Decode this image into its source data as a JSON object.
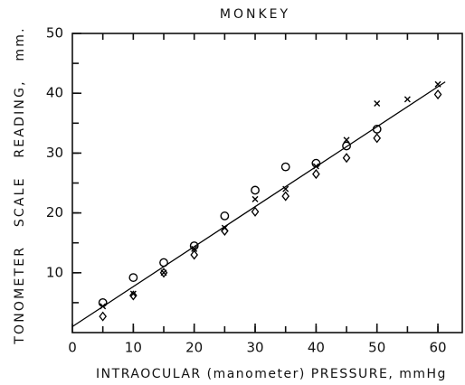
{
  "chart_data": {
    "type": "scatter",
    "title": "MONKEY",
    "x_label": "INTRAOCULAR (manometer) PRESSURE, mmHg",
    "y_label": "TONOMETER SCALE READING, mm.",
    "xlim": [
      0,
      64
    ],
    "ylim": [
      0,
      50
    ],
    "xticks": [
      0,
      10,
      20,
      30,
      40,
      50,
      60
    ],
    "yticks": [
      10,
      20,
      30,
      40,
      50
    ],
    "minor_step": 5,
    "series": [
      {
        "marker": "circle",
        "color": "#000000",
        "x": [
          5,
          10,
          15,
          20,
          25,
          30,
          35,
          40,
          45,
          50
        ],
        "values": [
          5,
          9.2,
          11.7,
          14.5,
          19.5,
          23.8,
          27.7,
          28.3,
          31.2,
          34
        ]
      },
      {
        "marker": "cross",
        "color": "#000000",
        "x": [
          5,
          10,
          15,
          20,
          25,
          30,
          35,
          40,
          45,
          50,
          55,
          60
        ],
        "values": [
          4.4,
          6.5,
          10,
          14,
          17.5,
          22.3,
          24,
          27.8,
          32.2,
          38.3,
          39,
          41.5
        ]
      },
      {
        "marker": "diamond",
        "color": "#000000",
        "x": [
          5,
          10,
          15,
          20,
          25,
          30,
          35,
          40,
          45,
          50,
          60
        ],
        "values": [
          2.7,
          6.2,
          10,
          13,
          17,
          20.2,
          22.8,
          26.5,
          29.2,
          32.5,
          39.8
        ]
      },
      {
        "marker": "line",
        "color": "#000000",
        "x": [
          0,
          61.2
        ],
        "values": [
          1,
          41.9
        ]
      }
    ]
  }
}
